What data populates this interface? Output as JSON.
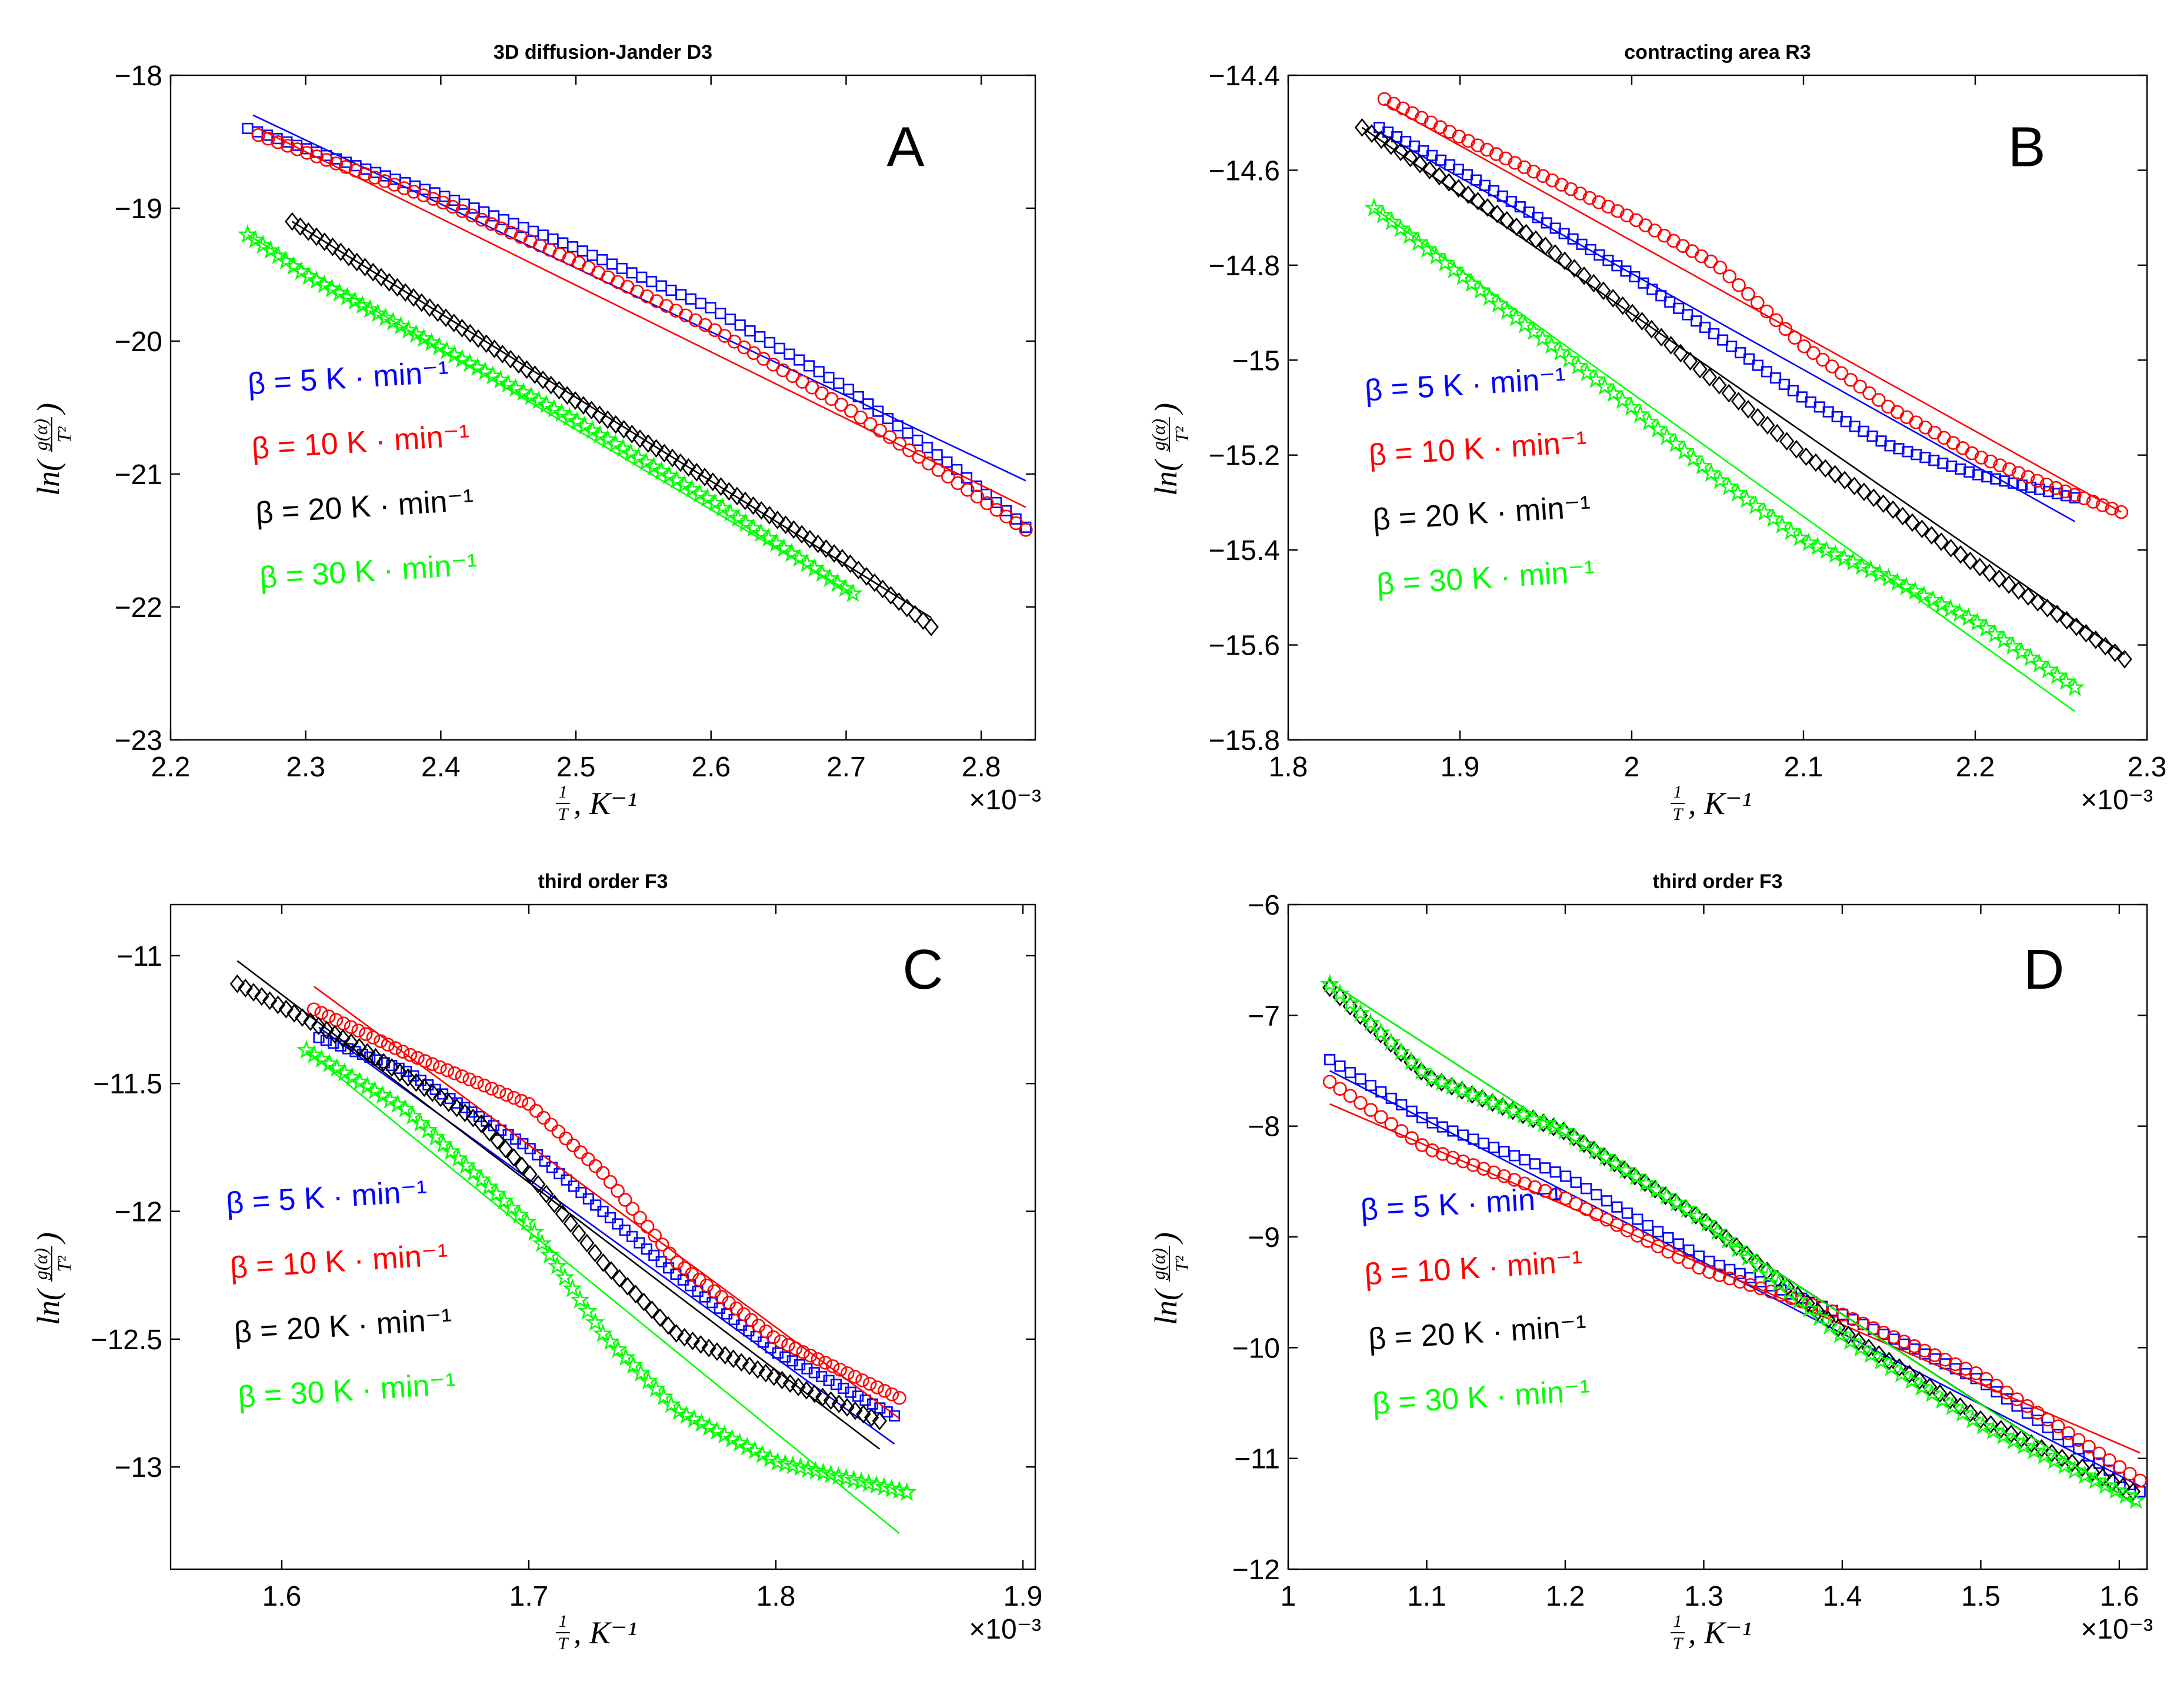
{
  "figure": {
    "exponent_label": "×10⁻³",
    "ylabel_parts": {
      "prefix": "ln(",
      "num": "g(α)",
      "den": "T²",
      "suffix": ")"
    },
    "xlabel_parts": {
      "num": "1",
      "den": "T",
      "suffix": ", K⁻¹"
    }
  },
  "chart_data": [
    {
      "id": "A",
      "type": "scatter",
      "title": "3D diffusion-Jander D3",
      "panel_letter": "A",
      "xlabel": "1/T, K^-1",
      "ylabel": "ln(g(α)/T²)",
      "x_scale_label": "×10^-3",
      "xlim": [
        2.2,
        2.84
      ],
      "ylim": [
        -23,
        -18
      ],
      "xticks": [
        2.2,
        2.3,
        2.4,
        2.5,
        2.6,
        2.7,
        2.8
      ],
      "xtick_labels": [
        "2.2",
        "2.3",
        "2.4",
        "2.5",
        "2.6",
        "2.7",
        "2.8"
      ],
      "yticks": [
        -23,
        -22,
        -21,
        -20,
        -19,
        -18
      ],
      "ytick_labels": [
        "−23",
        "−22",
        "−21",
        "−20",
        "−19",
        "−18"
      ],
      "series": [
        {
          "name": "β = 5 K · min⁻¹",
          "color": "#0000ff",
          "marker": "square",
          "points": [
            [
              2.257,
              -18.4
            ],
            [
              2.3,
              -18.55
            ],
            [
              2.4,
              -18.9
            ],
            [
              2.5,
              -19.3
            ],
            [
              2.6,
              -19.75
            ],
            [
              2.7,
              -20.35
            ],
            [
              2.78,
              -20.95
            ],
            [
              2.833,
              -21.4
            ]
          ],
          "fit": [
            [
              2.261,
              -18.3
            ],
            [
              2.833,
              -21.05
            ]
          ]
        },
        {
          "name": "β = 10 K · min⁻¹",
          "color": "#ff0000",
          "marker": "circle",
          "points": [
            [
              2.265,
              -18.45
            ],
            [
              2.3,
              -18.58
            ],
            [
              2.4,
              -18.95
            ],
            [
              2.5,
              -19.4
            ],
            [
              2.6,
              -19.9
            ],
            [
              2.7,
              -20.5
            ],
            [
              2.78,
              -21.05
            ],
            [
              2.833,
              -21.42
            ]
          ],
          "fit": [
            [
              2.265,
              -18.4
            ],
            [
              2.833,
              -21.25
            ]
          ]
        },
        {
          "name": "β = 20 K · min⁻¹",
          "color": "#000000",
          "marker": "diamond",
          "points": [
            [
              2.29,
              -19.1
            ],
            [
              2.4,
              -19.8
            ],
            [
              2.5,
              -20.45
            ],
            [
              2.6,
              -21.05
            ],
            [
              2.7,
              -21.65
            ],
            [
              2.763,
              -22.15
            ]
          ],
          "fit": [
            [
              2.29,
              -19.1
            ],
            [
              2.763,
              -22.08
            ]
          ]
        },
        {
          "name": "β = 30 K · min⁻¹",
          "color": "#00ff00",
          "marker": "star",
          "points": [
            [
              2.257,
              -19.2
            ],
            [
              2.3,
              -19.5
            ],
            [
              2.4,
              -20.05
            ],
            [
              2.5,
              -20.6
            ],
            [
              2.6,
              -21.2
            ],
            [
              2.705,
              -21.9
            ]
          ],
          "fit": [
            [
              2.257,
              -19.2
            ],
            [
              2.705,
              -21.9
            ]
          ]
        }
      ]
    },
    {
      "id": "B",
      "type": "scatter",
      "title": "contracting area R3",
      "panel_letter": "B",
      "xlabel": "1/T, K^-1",
      "ylabel": "ln(g(α)/T²)",
      "x_scale_label": "×10^-3",
      "xlim": [
        1.8,
        2.3
      ],
      "ylim": [
        -15.8,
        -14.4
      ],
      "xticks": [
        1.8,
        1.9,
        2.0,
        2.1,
        2.2,
        2.3
      ],
      "xtick_labels": [
        "1.8",
        "1.9",
        "2",
        "2.1",
        "2.2",
        "2.3"
      ],
      "yticks": [
        -15.8,
        -15.6,
        -15.4,
        -15.2,
        -15.0,
        -14.8,
        -14.6,
        -14.4
      ],
      "ytick_labels": [
        "−15.8",
        "−15.6",
        "−15.4",
        "−15.2",
        "−15",
        "−14.8",
        "−14.6",
        "−14.4"
      ],
      "series": [
        {
          "name": "β = 5 K · min⁻¹",
          "color": "#0000ff",
          "marker": "square",
          "points": [
            [
              1.853,
              -14.51
            ],
            [
              1.9,
              -14.6
            ],
            [
              2.0,
              -14.82
            ],
            [
              2.05,
              -14.95
            ],
            [
              2.1,
              -15.08
            ],
            [
              2.15,
              -15.18
            ],
            [
              2.2,
              -15.24
            ],
            [
              2.258,
              -15.29
            ]
          ],
          "fit": [
            [
              1.853,
              -14.52
            ],
            [
              2.258,
              -15.34
            ]
          ]
        },
        {
          "name": "β = 10 K · min⁻¹",
          "color": "#ff0000",
          "marker": "circle",
          "points": [
            [
              1.856,
              -14.45
            ],
            [
              1.9,
              -14.53
            ],
            [
              2.0,
              -14.7
            ],
            [
              2.05,
              -14.8
            ],
            [
              2.1,
              -14.97
            ],
            [
              2.15,
              -15.1
            ],
            [
              2.2,
              -15.2
            ],
            [
              2.24,
              -15.26
            ],
            [
              2.285,
              -15.32
            ]
          ],
          "fit": [
            [
              1.856,
              -14.46
            ],
            [
              2.285,
              -15.32
            ]
          ]
        },
        {
          "name": "β = 20 K · min⁻¹",
          "color": "#000000",
          "marker": "diamond",
          "points": [
            [
              1.843,
              -14.51
            ],
            [
              1.9,
              -14.64
            ],
            [
              1.95,
              -14.76
            ],
            [
              2.0,
              -14.9
            ],
            [
              2.05,
              -15.05
            ],
            [
              2.1,
              -15.2
            ],
            [
              2.15,
              -15.31
            ],
            [
              2.2,
              -15.43
            ],
            [
              2.25,
              -15.54
            ],
            [
              2.287,
              -15.63
            ]
          ],
          "fit": [
            [
              1.843,
              -14.51
            ],
            [
              2.287,
              -15.62
            ]
          ]
        },
        {
          "name": "β = 30 K · min⁻¹",
          "color": "#00ff00",
          "marker": "star",
          "points": [
            [
              1.85,
              -14.68
            ],
            [
              1.9,
              -14.82
            ],
            [
              1.95,
              -14.96
            ],
            [
              2.0,
              -15.1
            ],
            [
              2.05,
              -15.25
            ],
            [
              2.1,
              -15.38
            ],
            [
              2.15,
              -15.46
            ],
            [
              2.2,
              -15.55
            ],
            [
              2.258,
              -15.69
            ]
          ],
          "fit": [
            [
              1.85,
              -14.68
            ],
            [
              2.258,
              -15.74
            ]
          ]
        }
      ]
    },
    {
      "id": "C",
      "type": "scatter",
      "title": "third order F3",
      "panel_letter": "C",
      "xlabel": "1/T, K^-1",
      "ylabel": "ln(g(α)/T²)",
      "x_scale_label": "×10^-3",
      "xlim": [
        1.555,
        1.905
      ],
      "ylim": [
        -13.4,
        -10.8
      ],
      "xticks": [
        1.6,
        1.7,
        1.8,
        1.9
      ],
      "xtick_labels": [
        "1.6",
        "1.7",
        "1.8",
        "1.9"
      ],
      "yticks": [
        -13,
        -12.5,
        -12,
        -11.5,
        -11
      ],
      "ytick_labels": [
        "−13",
        "−12.5",
        "−12",
        "−11.5",
        "−11"
      ],
      "series": [
        {
          "name": "β = 5 K · min⁻¹",
          "color": "#0000ff",
          "marker": "square",
          "points": [
            [
              1.615,
              -11.32
            ],
            [
              1.65,
              -11.45
            ],
            [
              1.7,
              -11.75
            ],
            [
              1.73,
              -12.0
            ],
            [
              1.76,
              -12.25
            ],
            [
              1.8,
              -12.55
            ],
            [
              1.848,
              -12.8
            ]
          ],
          "fit": [
            [
              1.615,
              -11.28
            ],
            [
              1.848,
              -12.91
            ]
          ]
        },
        {
          "name": "β = 10 K · min⁻¹",
          "color": "#ff0000",
          "marker": "circle",
          "points": [
            [
              1.613,
              -11.21
            ],
            [
              1.65,
              -11.38
            ],
            [
              1.7,
              -11.58
            ],
            [
              1.73,
              -11.85
            ],
            [
              1.76,
              -12.2
            ],
            [
              1.8,
              -12.5
            ],
            [
              1.85,
              -12.73
            ]
          ],
          "fit": [
            [
              1.613,
              -11.12
            ],
            [
              1.85,
              -12.81
            ]
          ]
        },
        {
          "name": "β = 20 K · min⁻¹",
          "color": "#000000",
          "marker": "diamond",
          "points": [
            [
              1.582,
              -11.11
            ],
            [
              1.63,
              -11.35
            ],
            [
              1.68,
              -11.65
            ],
            [
              1.7,
              -11.85
            ],
            [
              1.73,
              -12.2
            ],
            [
              1.76,
              -12.48
            ],
            [
              1.8,
              -12.65
            ],
            [
              1.842,
              -12.82
            ]
          ],
          "fit": [
            [
              1.582,
              -11.02
            ],
            [
              1.842,
              -12.93
            ]
          ]
        },
        {
          "name": "β = 30 K · min⁻¹",
          "color": "#00ff00",
          "marker": "star",
          "points": [
            [
              1.61,
              -11.37
            ],
            [
              1.65,
              -11.6
            ],
            [
              1.7,
              -12.05
            ],
            [
              1.73,
              -12.48
            ],
            [
              1.76,
              -12.78
            ],
            [
              1.8,
              -12.98
            ],
            [
              1.853,
              -13.1
            ]
          ],
          "fit": [
            [
              1.61,
              -11.37
            ],
            [
              1.85,
              -13.26
            ]
          ]
        }
      ]
    },
    {
      "id": "D",
      "type": "scatter",
      "title": "third order F3",
      "panel_letter": "D",
      "xlabel": "1/T, K^-1",
      "ylabel": "ln(g(α)/T²)",
      "x_scale_label": "×10^-3",
      "xlim": [
        1.0,
        1.62
      ],
      "ylim": [
        -12,
        -6
      ],
      "xticks": [
        1.0,
        1.1,
        1.2,
        1.3,
        1.4,
        1.5,
        1.6
      ],
      "xtick_labels": [
        "1",
        "1.1",
        "1.2",
        "1.3",
        "1.4",
        "1.5",
        "1.6"
      ],
      "yticks": [
        -12,
        -11,
        -10,
        -9,
        -8,
        -7,
        -6
      ],
      "ytick_labels": [
        "−12",
        "−11",
        "−10",
        "−9",
        "−8",
        "−7",
        "−6"
      ],
      "series": [
        {
          "name": "β = 5 K · min⁻¹",
          "color": "#0000ff",
          "marker": "square",
          "points": [
            [
              1.03,
              -7.4
            ],
            [
              1.1,
              -7.95
            ],
            [
              1.2,
              -8.45
            ],
            [
              1.3,
              -9.2
            ],
            [
              1.4,
              -9.7
            ],
            [
              1.5,
              -10.3
            ],
            [
              1.615,
              -11.3
            ]
          ],
          "fit": [
            [
              1.03,
              -7.5
            ],
            [
              1.615,
              -11.25
            ]
          ]
        },
        {
          "name": "β = 10 K · min⁻¹",
          "color": "#ff0000",
          "marker": "circle",
          "points": [
            [
              1.03,
              -7.6
            ],
            [
              1.1,
              -8.2
            ],
            [
              1.2,
              -8.65
            ],
            [
              1.3,
              -9.3
            ],
            [
              1.4,
              -9.7
            ],
            [
              1.5,
              -10.25
            ],
            [
              1.615,
              -11.2
            ]
          ],
          "fit": [
            [
              1.03,
              -7.8
            ],
            [
              1.615,
              -10.95
            ]
          ]
        },
        {
          "name": "β = 20 K · min⁻¹",
          "color": "#000000",
          "marker": "diamond",
          "points": [
            [
              1.03,
              -6.75
            ],
            [
              1.1,
              -7.55
            ],
            [
              1.2,
              -8.05
            ],
            [
              1.3,
              -8.85
            ],
            [
              1.4,
              -9.85
            ],
            [
              1.5,
              -10.65
            ],
            [
              1.61,
              -11.3
            ]
          ],
          "fit": [
            [
              1.03,
              -6.7
            ],
            [
              1.61,
              -11.4
            ]
          ]
        },
        {
          "name": "β = 30 K · min⁻¹",
          "color": "#00ff00",
          "marker": "star",
          "points": [
            [
              1.03,
              -6.72
            ],
            [
              1.1,
              -7.55
            ],
            [
              1.2,
              -8.05
            ],
            [
              1.3,
              -8.85
            ],
            [
              1.4,
              -9.9
            ],
            [
              1.5,
              -10.7
            ],
            [
              1.612,
              -11.38
            ]
          ],
          "fit": [
            [
              1.03,
              -6.7
            ],
            [
              1.612,
              -11.42
            ]
          ]
        }
      ]
    }
  ]
}
